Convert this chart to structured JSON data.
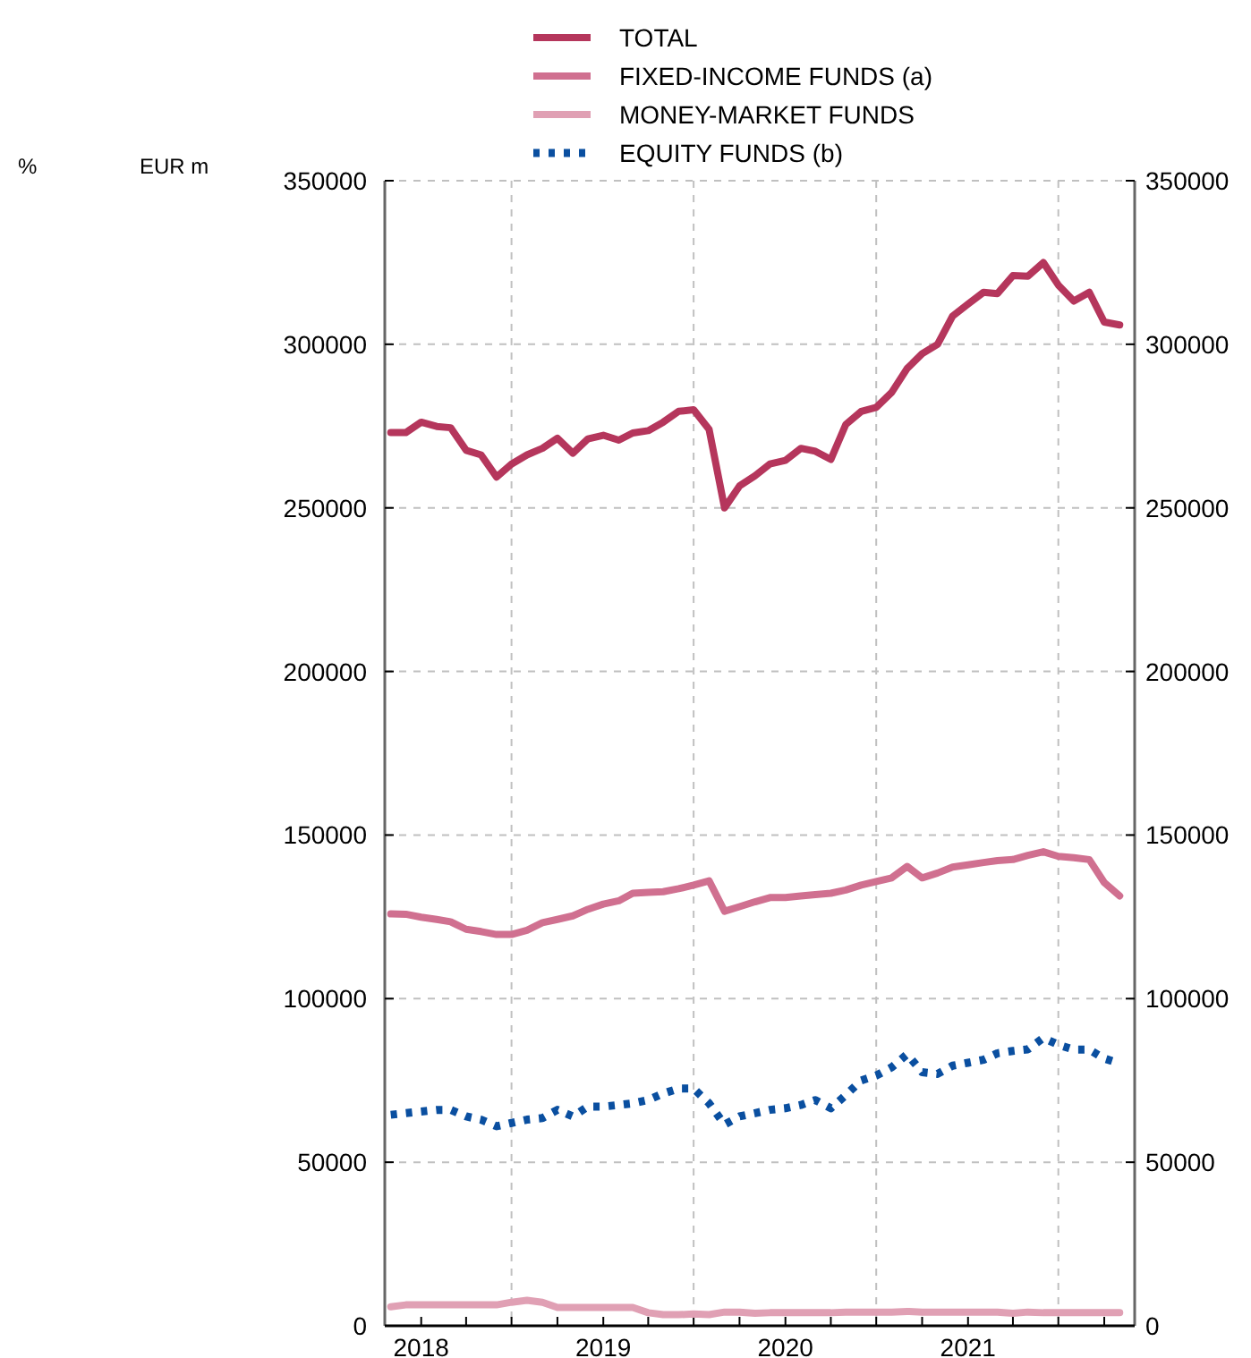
{
  "chart_data": {
    "type": "line",
    "ylabel": "EUR m",
    "annotations": [
      "%"
    ],
    "x": [
      "2017-11",
      "2017-12",
      "2018-01",
      "2018-02",
      "2018-03",
      "2018-04",
      "2018-05",
      "2018-06",
      "2018-07",
      "2018-08",
      "2018-09",
      "2018-10",
      "2018-11",
      "2018-12",
      "2019-01",
      "2019-02",
      "2019-03",
      "2019-04",
      "2019-05",
      "2019-06",
      "2019-07",
      "2019-08",
      "2019-09",
      "2019-10",
      "2019-11",
      "2019-12",
      "2020-01",
      "2020-02",
      "2020-03",
      "2020-04",
      "2020-05",
      "2020-06",
      "2020-07",
      "2020-08",
      "2020-09",
      "2020-10",
      "2020-11",
      "2020-12",
      "2021-01",
      "2021-02",
      "2021-03",
      "2021-04",
      "2021-05",
      "2021-06",
      "2021-07",
      "2021-08",
      "2021-09",
      "2021-10",
      "2021-11"
    ],
    "series": [
      {
        "name": "TOTAL",
        "color": "#b5365c",
        "values": [
          273000,
          273000,
          276200,
          274900,
          274500,
          267600,
          266200,
          259400,
          263400,
          266200,
          268200,
          271300,
          266700,
          271100,
          272200,
          270700,
          272900,
          273600,
          276200,
          279500,
          280000,
          274000,
          250000,
          256700,
          259800,
          263400,
          264500,
          268200,
          267300,
          264800,
          275500,
          279500,
          280700,
          285300,
          292600,
          297100,
          300000,
          308600,
          312300,
          315900,
          315500,
          321000,
          320800,
          325000,
          318100,
          313200,
          315900,
          306800,
          305900
        ]
      },
      {
        "name": "FIXED-INCOME FUNDS (a)",
        "color": "#d07090",
        "values": [
          125900,
          125800,
          124900,
          124200,
          123500,
          121200,
          120500,
          119600,
          119600,
          120900,
          123200,
          124200,
          125300,
          127300,
          128900,
          129900,
          132200,
          132500,
          132700,
          133600,
          134700,
          136000,
          126700,
          128100,
          129600,
          130900,
          130900,
          131400,
          131800,
          132200,
          133200,
          134700,
          135800,
          136900,
          140400,
          136900,
          138400,
          140200,
          140900,
          141600,
          142200,
          142500,
          143800,
          144900,
          143500,
          143100,
          142500,
          135500,
          131400
        ]
      },
      {
        "name": "MONEY-MARKET FUNDS",
        "color": "#e0a0b4",
        "values": [
          5800,
          6400,
          6400,
          6400,
          6400,
          6400,
          6400,
          6400,
          7200,
          7800,
          7200,
          5600,
          5600,
          5600,
          5600,
          5600,
          5600,
          4000,
          3400,
          3400,
          3600,
          3400,
          4200,
          4200,
          3800,
          4000,
          4000,
          4000,
          4000,
          4000,
          4200,
          4200,
          4200,
          4200,
          4400,
          4200,
          4200,
          4200,
          4200,
          4200,
          4200,
          3800,
          4200,
          4000,
          4000,
          4000,
          4000,
          4000,
          4000
        ]
      },
      {
        "name": "EQUITY FUNDS (b)",
        "color": "#0a4fa0",
        "line_style": "dotted",
        "values": [
          64500,
          65000,
          65500,
          66000,
          66000,
          64000,
          63000,
          61000,
          62000,
          63000,
          63500,
          66000,
          64000,
          67000,
          67000,
          67500,
          68000,
          69000,
          71000,
          72500,
          72500,
          68000,
          61500,
          64000,
          65000,
          66000,
          66500,
          67500,
          69000,
          66500,
          70500,
          75000,
          76500,
          79000,
          83000,
          77500,
          77000,
          79500,
          80400,
          81300,
          83300,
          84000,
          84500,
          88000,
          85900,
          84400,
          84400,
          81700,
          80200
        ]
      }
    ],
    "xlim": [
      "2017-10-20",
      "2021-12-01"
    ],
    "xticks": [
      {
        "value": "2018-01-01",
        "label": "2018"
      },
      {
        "value": "2018-04-01",
        "label": null
      },
      {
        "value": "2018-07-01",
        "label": null
      },
      {
        "value": "2018-10-01",
        "label": null
      },
      {
        "value": "2019-01-01",
        "label": "2019"
      },
      {
        "value": "2019-04-01",
        "label": null
      },
      {
        "value": "2019-07-01",
        "label": null
      },
      {
        "value": "2019-10-01",
        "label": null
      },
      {
        "value": "2020-01-01",
        "label": "2020"
      },
      {
        "value": "2020-04-01",
        "label": null
      },
      {
        "value": "2020-07-01",
        "label": null
      },
      {
        "value": "2020-10-01",
        "label": null
      },
      {
        "value": "2021-01-01",
        "label": "2021"
      },
      {
        "value": "2021-04-01",
        "label": null
      },
      {
        "value": "2021-07-01",
        "label": null
      },
      {
        "value": "2021-10-01",
        "label": null
      }
    ],
    "ylim": [
      0,
      350000
    ],
    "yticks": [
      0,
      50000,
      100000,
      150000,
      200000,
      250000,
      300000,
      350000
    ],
    "y2lim": [
      0,
      350000
    ],
    "y2ticks": [
      0,
      50000,
      100000,
      150000,
      200000,
      250000,
      300000,
      350000
    ],
    "ref_lines": [
      {
        "axis": "x",
        "value": "2018-07-01",
        "color": "#c0c0c0",
        "line_style": "dashed"
      },
      {
        "axis": "x",
        "value": "2019-07-01",
        "color": "#c0c0c0",
        "line_style": "dashed"
      },
      {
        "axis": "x",
        "value": "2020-07-01",
        "color": "#c0c0c0",
        "line_style": "dashed"
      },
      {
        "axis": "x",
        "value": "2021-07-01",
        "color": "#c0c0c0",
        "line_style": "dashed"
      }
    ],
    "grid": "y",
    "legend": "top",
    "line_style": "solid"
  }
}
